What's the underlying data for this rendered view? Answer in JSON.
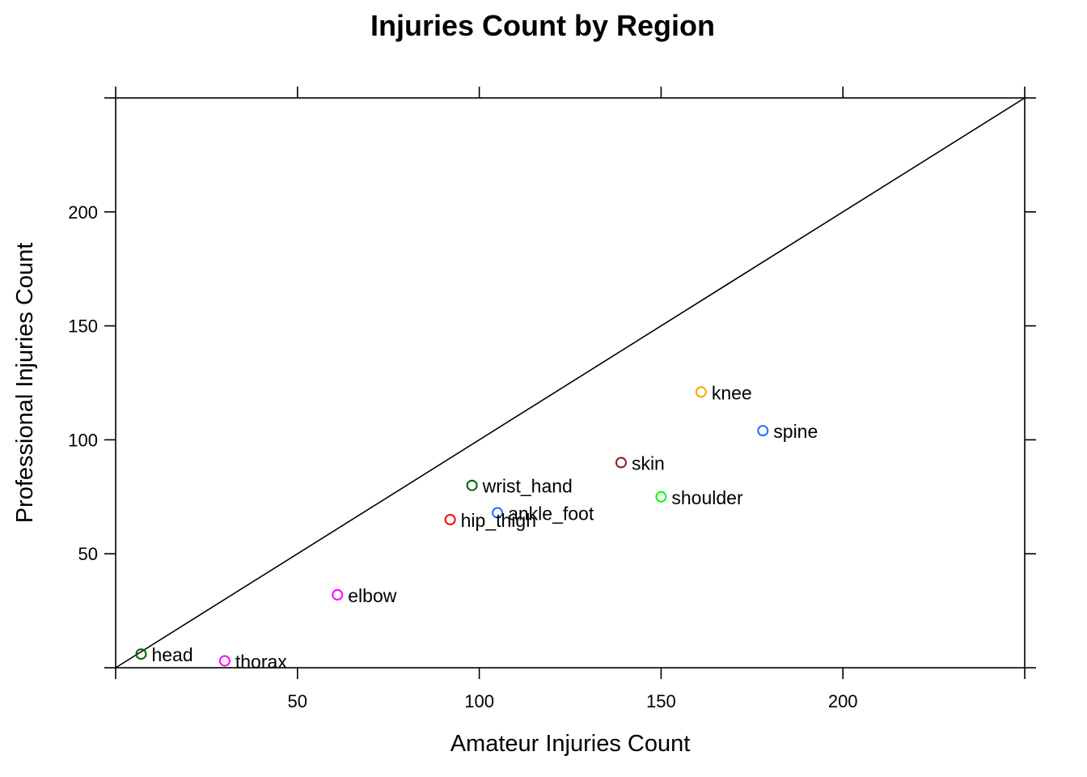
{
  "chart_data": {
    "type": "scatter",
    "title": "Injuries Count by Region",
    "xlabel": "Amateur Injuries Count",
    "ylabel": "Professional Injuries Count",
    "xlim": [
      0,
      250
    ],
    "ylim": [
      0,
      250
    ],
    "x_ticks": [
      50,
      100,
      150,
      200
    ],
    "y_ticks": [
      50,
      100,
      150,
      200
    ],
    "reference_line": "y = x",
    "grid": false,
    "points": [
      {
        "label": "head",
        "x": 7,
        "y": 6,
        "color": "#006400"
      },
      {
        "label": "thorax",
        "x": 30,
        "y": 3,
        "color": "#ff00ff"
      },
      {
        "label": "elbow",
        "x": 61,
        "y": 32,
        "color": "#ff00ff"
      },
      {
        "label": "hip_thigh",
        "x": 92,
        "y": 65,
        "color": "#ff0000"
      },
      {
        "label": "wrist_hand",
        "x": 98,
        "y": 80,
        "color": "#006400"
      },
      {
        "label": "ankle_foot",
        "x": 105,
        "y": 68,
        "color": "#1e6fff"
      },
      {
        "label": "skin",
        "x": 139,
        "y": 90,
        "color": "#8b1a1a"
      },
      {
        "label": "shoulder",
        "x": 150,
        "y": 75,
        "color": "#00ff00"
      },
      {
        "label": "knee",
        "x": 161,
        "y": 121,
        "color": "#ffa500"
      },
      {
        "label": "spine",
        "x": 178,
        "y": 104,
        "color": "#1e6fff"
      }
    ]
  }
}
